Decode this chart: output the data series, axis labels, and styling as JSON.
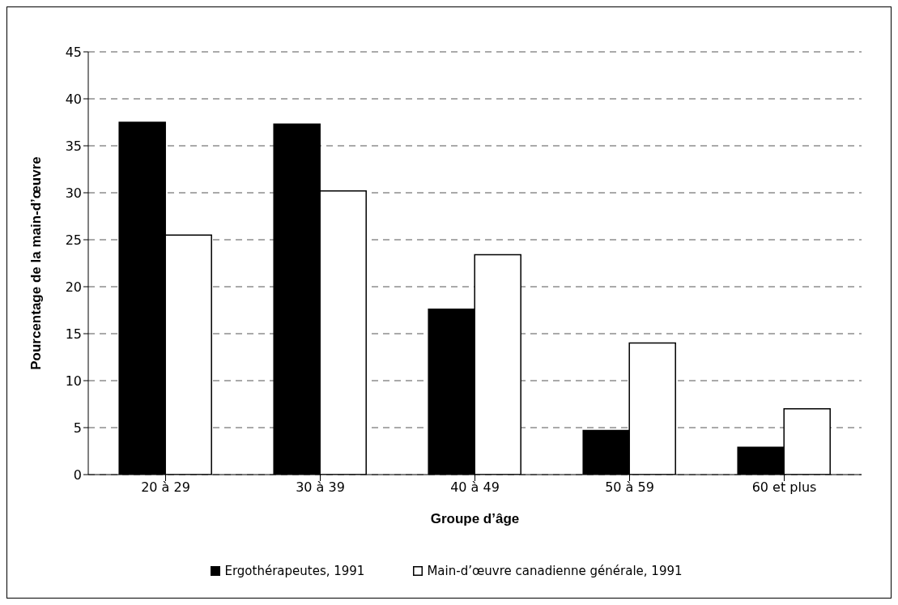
{
  "chart_data": {
    "type": "bar",
    "xlabel": "Groupe d’âge",
    "ylabel": "Pourcentage de la main-d’œuvre",
    "categories": [
      "20 à 29",
      "30 à 39",
      "40 à 49",
      "50 à 59",
      "60 et plus"
    ],
    "series": [
      {
        "name": "Ergothérapeutes, 1991",
        "color": "#000000",
        "values": [
          37.5,
          37.3,
          17.6,
          4.7,
          2.9
        ]
      },
      {
        "name": "Main-d’œuvre canadienne générale, 1991",
        "color": "#ffffff",
        "values": [
          25.5,
          30.2,
          23.4,
          14.0,
          7.0
        ]
      }
    ],
    "ylim": [
      0,
      45
    ],
    "yticks": [
      0,
      5,
      10,
      15,
      20,
      25,
      30,
      35,
      40,
      45
    ],
    "grid": "y",
    "legend": "bottom"
  }
}
